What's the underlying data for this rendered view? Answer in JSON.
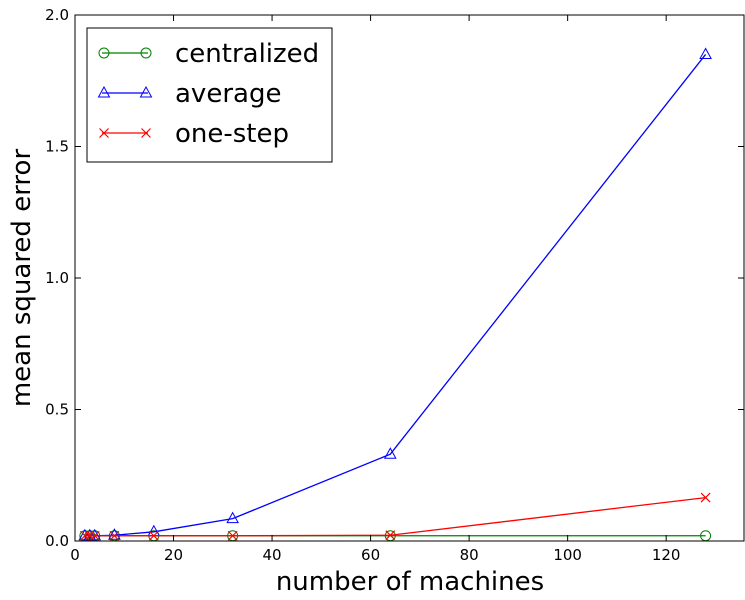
{
  "chart_data": {
    "type": "line",
    "title": "",
    "xlabel": "number of machines",
    "ylabel": "mean squared error",
    "xlim": [
      0,
      136
    ],
    "ylim": [
      0,
      2.0
    ],
    "xticks": [
      0,
      20,
      40,
      60,
      80,
      100,
      120
    ],
    "yticks": [
      0.0,
      0.5,
      1.0,
      1.5,
      2.0
    ],
    "xtick_labels": [
      "0",
      "20",
      "40",
      "60",
      "80",
      "100",
      "120"
    ],
    "ytick_labels": [
      "0.0",
      "0.5",
      "1.0",
      "1.5",
      "2.0"
    ],
    "grid": false,
    "legend_position": "top-left",
    "x": [
      2,
      3,
      4,
      8,
      16,
      32,
      64,
      128
    ],
    "series": [
      {
        "name": "centralized",
        "color": "#008000",
        "marker": "circle",
        "values": [
          0.02,
          0.02,
          0.02,
          0.02,
          0.02,
          0.02,
          0.02,
          0.02
        ]
      },
      {
        "name": "average",
        "color": "#0000ff",
        "marker": "triangle",
        "values": [
          0.02,
          0.02,
          0.02,
          0.022,
          0.035,
          0.085,
          0.33,
          1.85
        ]
      },
      {
        "name": "one-step",
        "color": "#ff0000",
        "marker": "x",
        "values": [
          0.02,
          0.02,
          0.02,
          0.02,
          0.02,
          0.02,
          0.022,
          0.165
        ]
      }
    ]
  }
}
